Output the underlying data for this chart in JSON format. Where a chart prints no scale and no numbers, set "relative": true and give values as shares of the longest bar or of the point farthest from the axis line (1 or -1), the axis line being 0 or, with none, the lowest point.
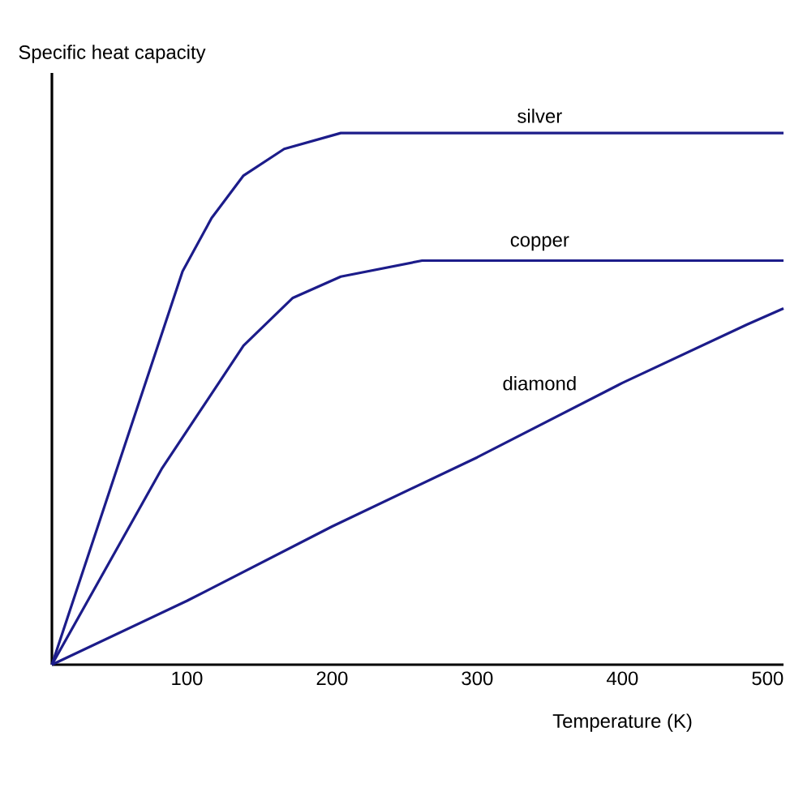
{
  "chart_data": {
    "type": "line",
    "ylabel": "Specific heat capacity",
    "xlabel": "Temperature (K)",
    "relative": true,
    "xlim": [
      7,
      511
    ],
    "xticks": [
      100,
      200,
      300,
      400,
      500
    ],
    "series": [
      {
        "name": "silver",
        "color": "#1c1c8a",
        "x": [
          7,
          97,
          117,
          139,
          167,
          206,
          307,
          511
        ],
        "values": [
          0,
          0.74,
          0.84,
          0.92,
          0.97,
          1.0,
          1.0,
          1.0
        ]
      },
      {
        "name": "copper",
        "color": "#1c1c8a",
        "x": [
          7,
          83,
          139,
          173,
          206,
          262,
          511
        ],
        "values": [
          0,
          0.37,
          0.6,
          0.69,
          0.73,
          0.76,
          0.76
        ]
      },
      {
        "name": "diamond",
        "color": "#1c1c8a",
        "x": [
          7,
          100,
          200,
          300,
          400,
          486,
          511
        ],
        "values": [
          0,
          0.12,
          0.26,
          0.39,
          0.53,
          0.64,
          0.67
        ]
      }
    ]
  }
}
